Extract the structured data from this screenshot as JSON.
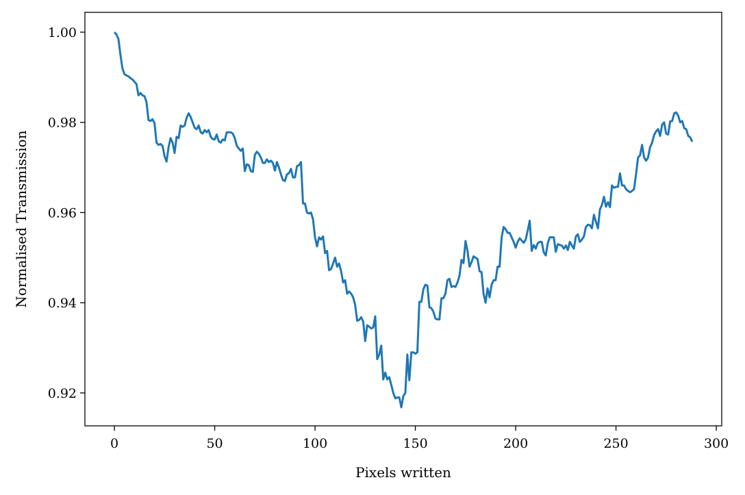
{
  "chart_data": {
    "type": "line",
    "title": "",
    "xlabel": "Pixels written",
    "ylabel": "Normalised Transmission",
    "xlim": [
      -14.7,
      302.7
    ],
    "ylim": [
      0.9127,
      1.0044
    ],
    "xticks": [
      0,
      50,
      100,
      150,
      200,
      250,
      300
    ],
    "xtick_labels": [
      "0",
      "50",
      "100",
      "150",
      "200",
      "250",
      "300"
    ],
    "yticks": [
      0.92,
      0.94,
      0.96,
      0.98,
      1.0
    ],
    "ytick_labels": [
      "0.92",
      "0.94",
      "0.96",
      "0.98",
      "1.00"
    ],
    "grid": false,
    "legend": "none",
    "series_color": "#1f77b4",
    "x": [
      0,
      1,
      2,
      3,
      4,
      5,
      6,
      7,
      8,
      9,
      10,
      11,
      12,
      13,
      14,
      15,
      16,
      17,
      18,
      19,
      20,
      21,
      22,
      23,
      24,
      25,
      26,
      27,
      28,
      29,
      30,
      31,
      32,
      33,
      34,
      35,
      36,
      37,
      38,
      39,
      40,
      41,
      42,
      43,
      44,
      45,
      46,
      47,
      48,
      49,
      50,
      51,
      52,
      53,
      54,
      55,
      56,
      57,
      58,
      59,
      60,
      61,
      62,
      63,
      64,
      65,
      66,
      67,
      68,
      69,
      70,
      71,
      72,
      73,
      74,
      75,
      76,
      77,
      78,
      79,
      80,
      81,
      82,
      83,
      84,
      85,
      86,
      87,
      88,
      89,
      90,
      91,
      92,
      93,
      94,
      95,
      96,
      97,
      98,
      99,
      100,
      101,
      102,
      103,
      104,
      105,
      106,
      107,
      108,
      109,
      110,
      111,
      112,
      113,
      114,
      115,
      116,
      117,
      118,
      119,
      120,
      121,
      122,
      123,
      124,
      125,
      126,
      127,
      128,
      129,
      130,
      131,
      132,
      133,
      134,
      135,
      136,
      137,
      138,
      139,
      140,
      141,
      142,
      143,
      144,
      145,
      146,
      147,
      148,
      149,
      150,
      151,
      152,
      153,
      154,
      155,
      156,
      157,
      158,
      159,
      160,
      161,
      162,
      163,
      164,
      165,
      166,
      167,
      168,
      169,
      170,
      171,
      172,
      173,
      174,
      175,
      176,
      177,
      178,
      179,
      180,
      181,
      182,
      183,
      184,
      185,
      186,
      187,
      188,
      189,
      190,
      191,
      192,
      193,
      194,
      195,
      196,
      197,
      198,
      199,
      200,
      201,
      202,
      203,
      204,
      205,
      206,
      207,
      208,
      209,
      210,
      211,
      212,
      213,
      214,
      215,
      216,
      217,
      218,
      219,
      220,
      221,
      222,
      223,
      224,
      225,
      226,
      227,
      228,
      229,
      230,
      231,
      232,
      233,
      234,
      235,
      236,
      237,
      238,
      239,
      240,
      241,
      242,
      243,
      244,
      245,
      246,
      247,
      248,
      249,
      250,
      251,
      252,
      253,
      254,
      255,
      256,
      257,
      258,
      259,
      260,
      261,
      262,
      263,
      264,
      265,
      266,
      267,
      268,
      269,
      270,
      271,
      272,
      273,
      274,
      275,
      276,
      277,
      278,
      279,
      280,
      281,
      282,
      283,
      284,
      285,
      286,
      287,
      288
    ],
    "y": [
      1.0,
      0.9995,
      0.9985,
      0.995,
      0.992,
      0.9907,
      0.9904,
      0.9902,
      0.9898,
      0.9895,
      0.989,
      0.9885,
      0.986,
      0.9865,
      0.986,
      0.9858,
      0.9845,
      0.9805,
      0.9803,
      0.9807,
      0.9798,
      0.9755,
      0.975,
      0.9752,
      0.9748,
      0.9725,
      0.9713,
      0.9745,
      0.9765,
      0.9755,
      0.9732,
      0.9768,
      0.9765,
      0.9793,
      0.979,
      0.9793,
      0.981,
      0.982,
      0.9812,
      0.98,
      0.9788,
      0.9785,
      0.9793,
      0.9778,
      0.9775,
      0.9783,
      0.9778,
      0.9783,
      0.9768,
      0.9763,
      0.9762,
      0.9773,
      0.9758,
      0.9755,
      0.9762,
      0.976,
      0.9778,
      0.9778,
      0.9778,
      0.9775,
      0.9765,
      0.9748,
      0.9742,
      0.9737,
      0.9742,
      0.9692,
      0.9707,
      0.9705,
      0.9692,
      0.969,
      0.9728,
      0.9735,
      0.973,
      0.9722,
      0.971,
      0.971,
      0.9718,
      0.9712,
      0.9715,
      0.971,
      0.9693,
      0.9712,
      0.97,
      0.9685,
      0.9672,
      0.967,
      0.9685,
      0.9687,
      0.9697,
      0.9678,
      0.9678,
      0.9703,
      0.9705,
      0.9712,
      0.962,
      0.962,
      0.96,
      0.9598,
      0.96,
      0.9585,
      0.9545,
      0.9525,
      0.9545,
      0.954,
      0.9547,
      0.951,
      0.9515,
      0.9472,
      0.9475,
      0.9487,
      0.95,
      0.948,
      0.9487,
      0.947,
      0.9445,
      0.945,
      0.942,
      0.9425,
      0.942,
      0.9412,
      0.9395,
      0.936,
      0.9362,
      0.9368,
      0.9358,
      0.9315,
      0.935,
      0.9347,
      0.9343,
      0.9345,
      0.937,
      0.9275,
      0.9285,
      0.9305,
      0.923,
      0.9245,
      0.923,
      0.9235,
      0.9218,
      0.92,
      0.9188,
      0.919,
      0.919,
      0.9168,
      0.9193,
      0.92,
      0.9285,
      0.9228,
      0.929,
      0.929,
      0.9287,
      0.929,
      0.9402,
      0.9402,
      0.943,
      0.944,
      0.9438,
      0.939,
      0.9388,
      0.938,
      0.9365,
      0.9363,
      0.9363,
      0.941,
      0.941,
      0.942,
      0.945,
      0.9453,
      0.9435,
      0.9437,
      0.9435,
      0.9445,
      0.946,
      0.9495,
      0.9488,
      0.9537,
      0.9515,
      0.948,
      0.949,
      0.9503,
      0.95,
      0.9497,
      0.947,
      0.9468,
      0.942,
      0.94,
      0.9432,
      0.9412,
      0.944,
      0.945,
      0.945,
      0.948,
      0.948,
      0.9545,
      0.9568,
      0.9563,
      0.9555,
      0.9555,
      0.9545,
      0.9535,
      0.9522,
      0.9535,
      0.9543,
      0.9538,
      0.9533,
      0.954,
      0.956,
      0.9582,
      0.9515,
      0.9528,
      0.952,
      0.9532,
      0.9535,
      0.9535,
      0.9512,
      0.9505,
      0.9532,
      0.9545,
      0.9545,
      0.9545,
      0.9513,
      0.953,
      0.9528,
      0.9527,
      0.952,
      0.9527,
      0.9517,
      0.9535,
      0.9527,
      0.952,
      0.9547,
      0.9552,
      0.9535,
      0.954,
      0.9547,
      0.9568,
      0.9573,
      0.9572,
      0.9565,
      0.9595,
      0.958,
      0.9565,
      0.9607,
      0.9617,
      0.9635,
      0.9613,
      0.9623,
      0.9612,
      0.966,
      0.9655,
      0.9657,
      0.9657,
      0.9687,
      0.966,
      0.966,
      0.9652,
      0.9648,
      0.9645,
      0.9648,
      0.9652,
      0.9685,
      0.9722,
      0.9727,
      0.975,
      0.9722,
      0.9715,
      0.9722,
      0.9745,
      0.9755,
      0.9772,
      0.978,
      0.9785,
      0.977,
      0.9795,
      0.98,
      0.9775,
      0.9773,
      0.9802,
      0.9803,
      0.982,
      0.9822,
      0.9815,
      0.98,
      0.9803,
      0.9787,
      0.9785,
      0.977,
      0.9767,
      0.9757
    ]
  }
}
